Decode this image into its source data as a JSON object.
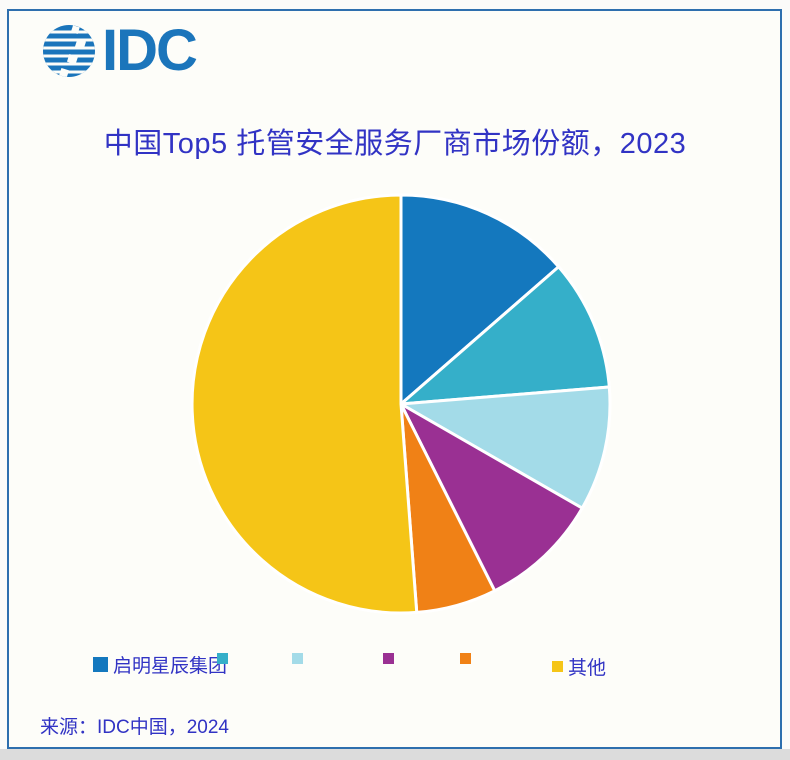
{
  "logo": {
    "text": "IDC"
  },
  "title": "中国Top5 托管安全服务厂商市场份额，2023",
  "source": "来源：IDC中国，2024",
  "colors": {
    "brand_blue": "#1b75bb",
    "text_indigo": "#3133c4",
    "frame_border": "#2e6fae",
    "panel_background": "#fdfdf9"
  },
  "chart_data": {
    "type": "pie",
    "title": "中国Top5 托管安全服务厂商市场份额，2023",
    "start_angle_deg": 0,
    "direction": "clockwise",
    "legend_position": "bottom",
    "slices": [
      {
        "label": "启明星辰集团",
        "value": 13.6,
        "color": "#1478be"
      },
      {
        "label": "",
        "value": 10.1,
        "color": "#35afc9"
      },
      {
        "label": "",
        "value": 9.6,
        "color": "#a3dbe8"
      },
      {
        "label": "",
        "value": 9.3,
        "color": "#9a3093"
      },
      {
        "label": "",
        "value": 6.2,
        "color": "#f08116"
      },
      {
        "label": "其他",
        "value": 51.2,
        "color": "#f5c517"
      }
    ]
  }
}
